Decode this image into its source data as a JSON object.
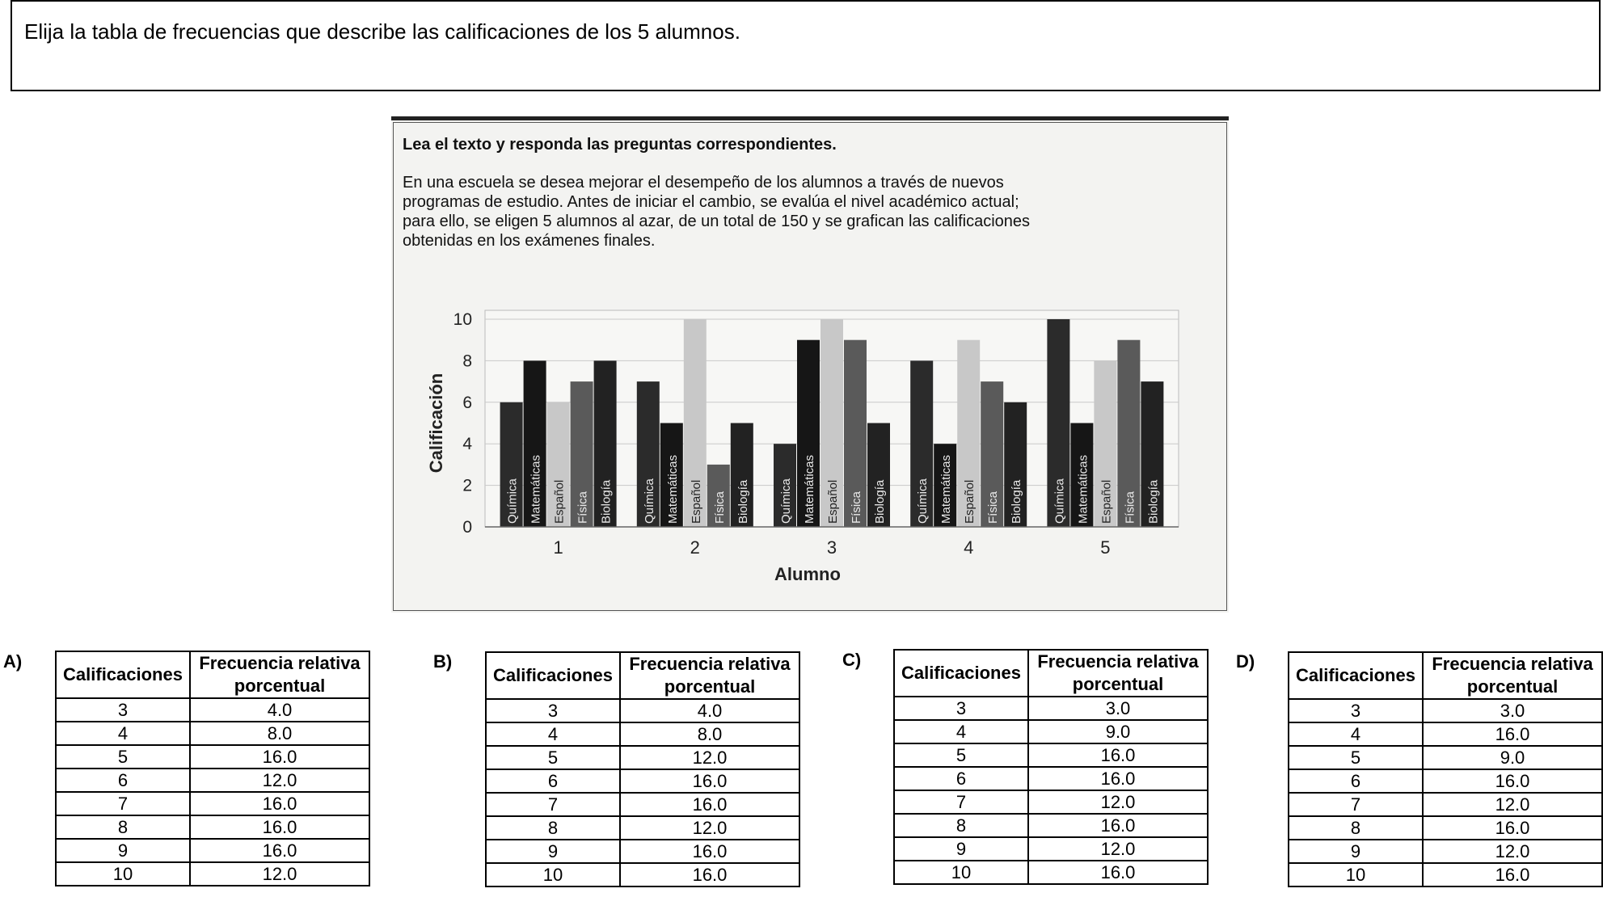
{
  "question": "Elija la tabla de frecuencias que describe las calificaciones de los 5 alumnos.",
  "figure": {
    "heading": "Lea el texto y responda las preguntas correspondientes.",
    "paragraph_lines": [
      "En una escuela se desea mejorar el desempeño de los alumnos a través de nuevos",
      "programas de estudio. Antes de iniciar el cambio, se evalúa el nivel académico actual;",
      "para ello, se eligen 5 alumnos al azar, de un total de 150 y se grafican las calificaciones",
      "obtenidas en los exámenes finales."
    ]
  },
  "chart_data": {
    "type": "bar",
    "xlabel": "Alumno",
    "ylabel": "Calificación",
    "ylim": [
      0,
      10
    ],
    "yticks": [
      "0",
      "2",
      "4",
      "6",
      "8",
      "10"
    ],
    "categories": [
      "1",
      "2",
      "3",
      "4",
      "5"
    ],
    "series": [
      {
        "name": "Química",
        "color": "#2b2b2b",
        "values": [
          6,
          7,
          4,
          8,
          10
        ]
      },
      {
        "name": "Matemáticas",
        "color": "#161616",
        "values": [
          8,
          5,
          9,
          4,
          5
        ]
      },
      {
        "name": "Español",
        "color": "#c8c8c8",
        "values": [
          6,
          10,
          10,
          9,
          8
        ]
      },
      {
        "name": "Física",
        "color": "#5a5a5a",
        "values": [
          7,
          3,
          9,
          7,
          9
        ]
      },
      {
        "name": "Biología",
        "color": "#222222",
        "values": [
          8,
          5,
          5,
          6,
          7
        ]
      }
    ],
    "grid": true,
    "legend": "none"
  },
  "options": [
    {
      "letter": "A)",
      "header": [
        "Calificaciones",
        "Frecuencia relativa porcentual"
      ],
      "rows": [
        [
          "3",
          "4.0"
        ],
        [
          "4",
          "8.0"
        ],
        [
          "5",
          "16.0"
        ],
        [
          "6",
          "12.0"
        ],
        [
          "7",
          "16.0"
        ],
        [
          "8",
          "16.0"
        ],
        [
          "9",
          "16.0"
        ],
        [
          "10",
          "12.0"
        ]
      ]
    },
    {
      "letter": "B)",
      "header": [
        "Calificaciones",
        "Frecuencia relativa porcentual"
      ],
      "rows": [
        [
          "3",
          "4.0"
        ],
        [
          "4",
          "8.0"
        ],
        [
          "5",
          "12.0"
        ],
        [
          "6",
          "16.0"
        ],
        [
          "7",
          "16.0"
        ],
        [
          "8",
          "12.0"
        ],
        [
          "9",
          "16.0"
        ],
        [
          "10",
          "16.0"
        ]
      ]
    },
    {
      "letter": "C)",
      "header": [
        "Calificaciones",
        "Frecuencia relativa porcentual"
      ],
      "rows": [
        [
          "3",
          "3.0"
        ],
        [
          "4",
          "9.0"
        ],
        [
          "5",
          "16.0"
        ],
        [
          "6",
          "16.0"
        ],
        [
          "7",
          "12.0"
        ],
        [
          "8",
          "16.0"
        ],
        [
          "9",
          "12.0"
        ],
        [
          "10",
          "16.0"
        ]
      ]
    },
    {
      "letter": "D)",
      "header": [
        "Calificaciones",
        "Frecuencia relativa porcentual"
      ],
      "rows": [
        [
          "3",
          "3.0"
        ],
        [
          "4",
          "16.0"
        ],
        [
          "5",
          "9.0"
        ],
        [
          "6",
          "16.0"
        ],
        [
          "7",
          "12.0"
        ],
        [
          "8",
          "16.0"
        ],
        [
          "9",
          "12.0"
        ],
        [
          "10",
          "16.0"
        ]
      ]
    }
  ]
}
